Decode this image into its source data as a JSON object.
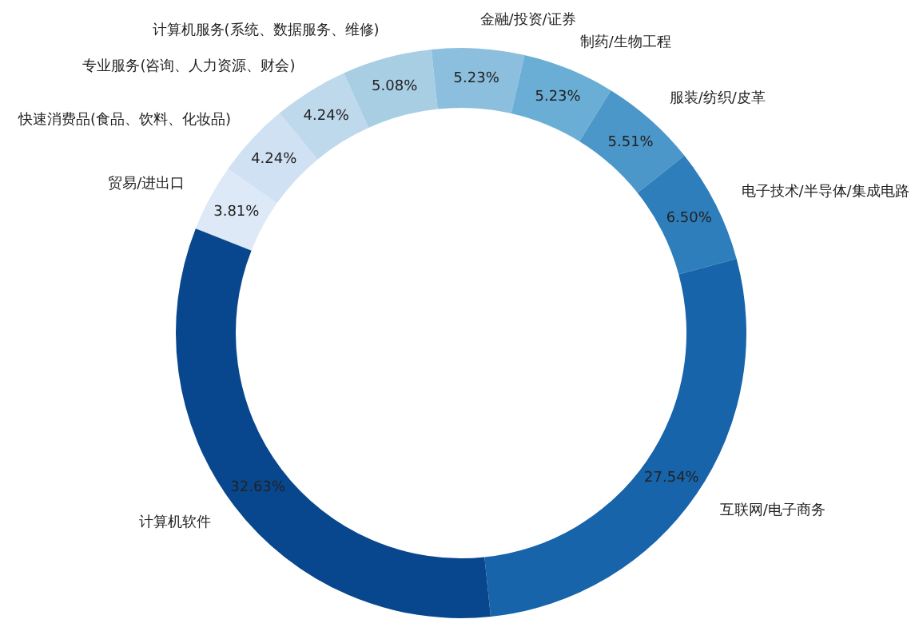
{
  "chart_data": {
    "type": "donut",
    "categories": [
      "贸易/进出口",
      "快速消费品(食品、饮料、化妆品)",
      "专业服务(咨询、人力资源、财会)",
      "计算机服务(系统、数据服务、维修)",
      "金融/投资/证券",
      "制药/生物工程",
      "服装/纺织/皮革",
      "电子技术/半导体/集成电路",
      "互联网/电子商务",
      "计算机软件"
    ],
    "values": [
      3.81,
      4.24,
      4.24,
      5.08,
      5.23,
      5.23,
      5.51,
      6.5,
      27.54,
      32.63
    ],
    "value_labels": [
      "3.81%",
      "4.24%",
      "4.24%",
      "5.08%",
      "5.23%",
      "5.23%",
      "5.51%",
      "6.50%",
      "27.54%",
      "32.63%"
    ],
    "colors": [
      "#dde9f6",
      "#cfe1f2",
      "#bed8ec",
      "#a8cee4",
      "#8bbfdd",
      "#6aaed6",
      "#4b97c9",
      "#2f7ebc",
      "#1764ab",
      "#08478e"
    ],
    "legend": false
  }
}
